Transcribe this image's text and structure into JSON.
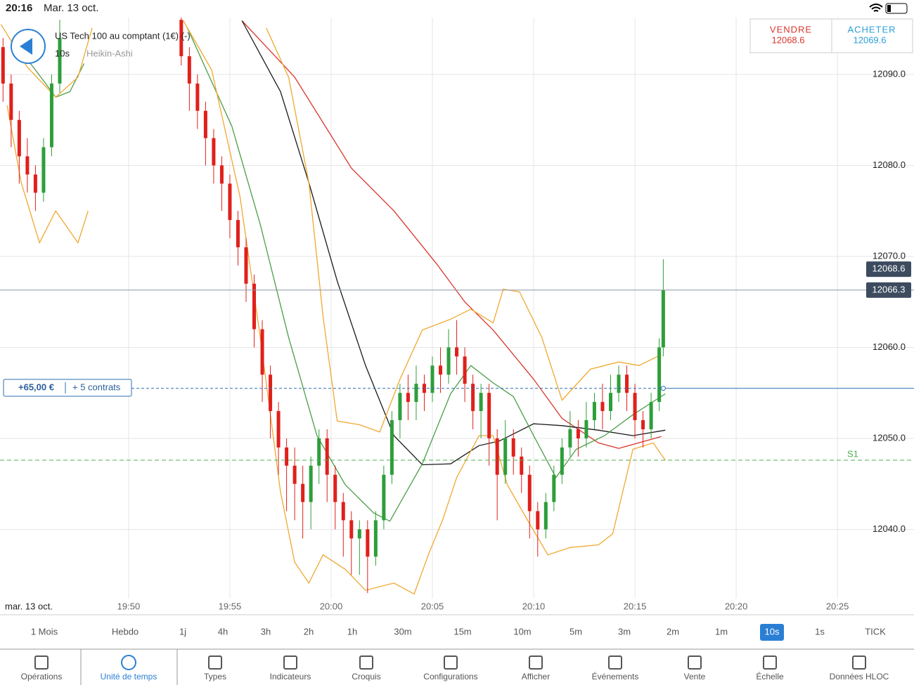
{
  "status_bar": {
    "time": "20:16",
    "date": "Mar. 13 oct."
  },
  "instrument": {
    "name": "US Tech 100 au comptant (1€) (-)",
    "interval": "10s",
    "chart_style": "Heikin-Ashi"
  },
  "quote": {
    "sell_label": "VENDRE",
    "sell": 12068.6,
    "buy_label": "ACHETER",
    "buy": 12069.6
  },
  "position": {
    "pnl": "+65,00 €",
    "size": "+ 5 contrats"
  },
  "chart_data": {
    "type": "candlestick",
    "date_label": "mar. 13 oct.",
    "xlim": [
      1183.65,
      1228.78
    ],
    "ylim": [
      12032.39,
      12096.25
    ],
    "xticks": [
      {
        "value": 1190,
        "label": "19:50"
      },
      {
        "value": 1195,
        "label": "19:55"
      },
      {
        "value": 1200,
        "label": "20:00"
      },
      {
        "value": 1205,
        "label": "20:05"
      },
      {
        "value": 1210,
        "label": "20:10"
      },
      {
        "value": 1215,
        "label": "20:15"
      },
      {
        "value": 1220,
        "label": "20:20"
      },
      {
        "value": 1225,
        "label": "20:25"
      }
    ],
    "yticks": [
      {
        "value": 12040,
        "label": "12040.0"
      },
      {
        "value": 12050,
        "label": "12050.0"
      },
      {
        "value": 12060,
        "label": "12060.0"
      },
      {
        "value": 12070,
        "label": "12070.0"
      },
      {
        "value": 12080,
        "label": "12080.0"
      },
      {
        "value": 12090,
        "label": "12090.0"
      }
    ],
    "grid": true,
    "up_color": "#2e9e3a",
    "down_color": "#e0201b",
    "candles": [
      [
        1183.8,
        12093,
        12089,
        12094,
        12087
      ],
      [
        1184.2,
        12089,
        12085,
        12090,
        12082
      ],
      [
        1184.6,
        12085,
        12081,
        12086,
        12078
      ],
      [
        1185.0,
        12081,
        12079,
        12083,
        12077
      ],
      [
        1185.4,
        12079,
        12077,
        12080,
        12075
      ],
      [
        1185.8,
        12077,
        12082,
        12083,
        12076
      ],
      [
        1186.2,
        12082,
        12089,
        12090,
        12081
      ],
      [
        1186.6,
        12089,
        12094,
        12096,
        12088
      ],
      [
        1192.6,
        12096,
        12092,
        12097,
        12091
      ],
      [
        1193.0,
        12092,
        12089,
        12093,
        12086
      ],
      [
        1193.4,
        12089,
        12086,
        12090,
        12084
      ],
      [
        1193.8,
        12086,
        12083,
        12087,
        12080
      ],
      [
        1194.2,
        12083,
        12080,
        12084,
        12078
      ],
      [
        1194.6,
        12080,
        12078,
        12081,
        12075
      ],
      [
        1195.0,
        12078,
        12074,
        12079,
        12072
      ],
      [
        1195.4,
        12074,
        12071,
        12075,
        12069
      ],
      [
        1195.8,
        12071,
        12067,
        12072,
        12065
      ],
      [
        1196.2,
        12067,
        12062,
        12068,
        12060
      ],
      [
        1196.6,
        12062,
        12057,
        12063,
        12054
      ],
      [
        1197.0,
        12057,
        12053,
        12058,
        12050
      ],
      [
        1197.4,
        12053,
        12049,
        12054,
        12046
      ],
      [
        1197.8,
        12049,
        12047,
        12050,
        12042
      ],
      [
        1198.2,
        12047,
        12045,
        12049,
        12041
      ],
      [
        1198.6,
        12045,
        12043,
        12047,
        12039
      ],
      [
        1199.0,
        12043,
        12047,
        12048,
        12040
      ],
      [
        1199.4,
        12047,
        12050,
        12051,
        12045
      ],
      [
        1199.8,
        12050,
        12046,
        12051,
        12043
      ],
      [
        1200.2,
        12046,
        12043,
        12047,
        12040
      ],
      [
        1200.6,
        12043,
        12041,
        12044,
        12037
      ],
      [
        1201.0,
        12041,
        12039,
        12042,
        12035
      ],
      [
        1201.4,
        12039,
        12040,
        12041,
        12035
      ],
      [
        1201.8,
        12040,
        12037,
        12041,
        12033
      ],
      [
        1202.2,
        12037,
        12041,
        12042,
        12036
      ],
      [
        1202.6,
        12041,
        12046,
        12047,
        12040
      ],
      [
        1203.0,
        12046,
        12052,
        12053,
        12045
      ],
      [
        1203.4,
        12052,
        12055,
        12056,
        12050
      ],
      [
        1203.8,
        12055,
        12054,
        12057,
        12052
      ],
      [
        1204.2,
        12054,
        12056,
        12058,
        12052
      ],
      [
        1204.6,
        12056,
        12055,
        12057,
        12053
      ],
      [
        1205.0,
        12055,
        12058,
        12059,
        12054
      ],
      [
        1205.4,
        12058,
        12057,
        12060,
        12055
      ],
      [
        1205.8,
        12057,
        12060,
        12062,
        12056
      ],
      [
        1206.2,
        12060,
        12059,
        12063,
        12057
      ],
      [
        1206.6,
        12059,
        12056,
        12060,
        12054
      ],
      [
        1207.0,
        12056,
        12053,
        12057,
        12051
      ],
      [
        1207.4,
        12053,
        12055,
        12056,
        12050
      ],
      [
        1207.8,
        12055,
        12050,
        12056,
        12047
      ],
      [
        1208.2,
        12050,
        12046,
        12051,
        12041
      ],
      [
        1208.6,
        12046,
        12050,
        12052,
        12045
      ],
      [
        1209.0,
        12050,
        12048,
        12051,
        12046
      ],
      [
        1209.4,
        12048,
        12046,
        12049,
        12044
      ],
      [
        1209.8,
        12046,
        12042,
        12047,
        12039
      ],
      [
        1210.2,
        12042,
        12040,
        12043,
        12037
      ],
      [
        1210.6,
        12040,
        12043,
        12044,
        12039
      ],
      [
        1211.0,
        12043,
        12046,
        12047,
        12042
      ],
      [
        1211.4,
        12046,
        12049,
        12050,
        12045
      ],
      [
        1211.8,
        12049,
        12051,
        12053,
        12048
      ],
      [
        1212.2,
        12051,
        12050,
        12052,
        12048
      ],
      [
        1212.6,
        12050,
        12052,
        12054,
        12049
      ],
      [
        1213.0,
        12052,
        12054,
        12055,
        12051
      ],
      [
        1213.4,
        12054,
        12053,
        12056,
        12051
      ],
      [
        1213.8,
        12053,
        12055,
        12057,
        12052
      ],
      [
        1214.2,
        12055,
        12057,
        12058,
        12054
      ],
      [
        1214.6,
        12057,
        12055,
        12058,
        12053
      ],
      [
        1215.0,
        12055,
        12052,
        12056,
        12050
      ],
      [
        1215.4,
        12052,
        12051,
        12053,
        12049
      ],
      [
        1215.8,
        12051,
        12054,
        12055,
        12050
      ],
      [
        1216.2,
        12054,
        12060,
        12061,
        12053
      ],
      [
        1216.4,
        12060,
        12066.3,
        12069.7,
        12059
      ]
    ],
    "lines": [
      {
        "color": "#d8352e",
        "x": [
          1195.6,
          1198.2,
          1201.0,
          1203.1,
          1205.2,
          1206.6,
          1208.0,
          1210.0,
          1211.4,
          1213.2,
          1214.2,
          1216.3
        ],
        "values": [
          12095.9,
          12089.7,
          12079.7,
          12075.0,
          12069.2,
          12065.0,
          12061.9,
          12056.5,
          12052.2,
          12049.5,
          12048.9,
          12050.2
        ]
      },
      {
        "color": "#1a1a1a",
        "x": [
          1195.6,
          1197.5,
          1198.9,
          1200.3,
          1201.7,
          1203.1,
          1204.5,
          1205.9,
          1207.3,
          1208.3,
          1210.0,
          1211.4,
          1213.2,
          1214.9,
          1216.5
        ],
        "values": [
          12095.9,
          12088.1,
          12078.1,
          12067.3,
          12058.0,
          12050.3,
          12047.1,
          12047.2,
          12049.2,
          12049.7,
          12051.6,
          12051.4,
          12050.9,
          12050.3,
          12050.9
        ]
      },
      {
        "color": "#4a9e46",
        "x": [
          1184.3,
          1185.4,
          1186.4,
          1187.1,
          1187.8,
          null,
          1192.9,
          1195.1,
          1196.5,
          1197.9,
          1199.3,
          1200.7,
          1202.1,
          1202.9,
          1204.5,
          1205.9,
          1206.9,
          1208.0,
          1209.0,
          1210.0,
          1211.1,
          1212.1,
          1213.5,
          1214.9,
          1216.5
        ],
        "values": [
          12093.6,
          12090.5,
          12087.5,
          12088.1,
          12091.2,
          null,
          12095.1,
          12084.3,
          12073.5,
          12061.1,
          12050.3,
          12044.9,
          12041.8,
          12040.9,
          12047.2,
          12054.9,
          12058.0,
          12056.1,
          12054.6,
          12050.3,
          12045.7,
          12048.8,
          12050.3,
          12052.6,
          12054.9
        ]
      },
      {
        "color": "#f0a830",
        "x": [
          1183.7,
          1185.0,
          1186.4,
          1187.5,
          1188.2,
          null,
          1196.8,
          1197.9,
          1198.9,
          1199.6,
          1200.3,
          1201.4,
          1202.4,
          1203.4,
          1204.5,
          1205.9,
          1206.9,
          1208.0,
          1208.5,
          1209.3,
          1210.4,
          1211.4,
          1212.8,
          1214.2,
          1215.2,
          1216.3
        ],
        "values": [
          12095.5,
          12090.8,
          12087.5,
          12089.7,
          12095.1,
          null,
          12095.1,
          12089.7,
          12078.1,
          12063.4,
          12051.9,
          12051.5,
          12050.7,
          12056.5,
          12061.9,
          12063.1,
          12064.2,
          12062.7,
          12066.4,
          12066.1,
          12061.1,
          12054.2,
          12057.6,
          12058.4,
          12058.0,
          12059.2
        ]
      },
      {
        "color": "#f0a830",
        "x": [
          1184.0,
          1184.7,
          1185.6,
          1186.4,
          1187.5,
          1188.0,
          null,
          1192.7,
          1194.1,
          1195.5,
          1196.5,
          1197.5,
          1198.2,
          1198.9,
          1199.6,
          1200.7,
          1201.7,
          1203.1,
          1204.1,
          1204.8,
          1205.5,
          1206.2,
          1207.3,
          1208.0,
          1208.7,
          1209.7,
          1210.7,
          1211.8,
          1213.2,
          1213.9,
          1214.9,
          1215.9,
          1216.5
        ],
        "values": [
          12086.6,
          12078.1,
          12071.5,
          12075.0,
          12071.5,
          12075.0,
          null,
          12095.9,
          12090.5,
          12076.6,
          12061.1,
          12044.1,
          12036.4,
          12034.1,
          12037.2,
          12035.6,
          12033.3,
          12034.1,
          12032.9,
          12037.2,
          12041.0,
          12045.7,
          12050.3,
          12050.3,
          12044.9,
          12041.0,
          12037.2,
          12038.0,
          12038.3,
          12039.5,
          12048.8,
          12049.5,
          12047.6
        ]
      }
    ],
    "price_tags": [
      {
        "value": 12068.6,
        "color": "#3d4b5f",
        "line": false
      },
      {
        "value": 12066.3,
        "color": "#3d4b5f",
        "line": true
      }
    ],
    "position_level": 12055.5,
    "support": {
      "value": 12047.6,
      "label": "S1",
      "color": "#4caf50"
    }
  },
  "timeframes": {
    "items": [
      "1 Mois",
      "Hebdo",
      "1j",
      "4h",
      "3h",
      "2h",
      "1h",
      "30m",
      "15m",
      "10m",
      "5m",
      "3m",
      "2m",
      "1m",
      "10s",
      "1s",
      "TICK"
    ],
    "selected": 14
  },
  "toolbar": {
    "items": [
      "Opérations",
      "Unité de temps",
      "Types",
      "Indicateurs",
      "Croquis",
      "Configurations",
      "Afficher",
      "Événements",
      "Vente",
      "Échelle",
      "Données HLOC"
    ],
    "selected": 1
  }
}
